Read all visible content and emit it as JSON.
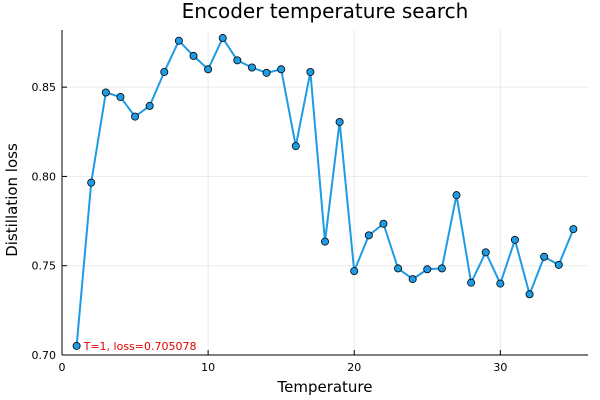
{
  "chart_data": {
    "type": "line",
    "title": "Encoder temperature search",
    "xlabel": "Temperature",
    "ylabel": "Distillation loss",
    "xlim": [
      0,
      36
    ],
    "ylim": [
      0.7,
      0.882
    ],
    "xticks": [
      0,
      10,
      20,
      30
    ],
    "xtick_labels": [
      "0",
      "10",
      "20",
      "30"
    ],
    "yticks": [
      0.7,
      0.75,
      0.8,
      0.85
    ],
    "ytick_labels": [
      "0.70",
      "0.75",
      "0.80",
      "0.85"
    ],
    "grid": true,
    "legend": "none",
    "series": [
      {
        "color": "#1f9be5",
        "marker_color": "#1f9be5",
        "x": [
          1,
          2,
          3,
          4,
          5,
          6,
          7,
          8,
          9,
          10,
          11,
          12,
          13,
          14,
          15,
          16,
          17,
          18,
          19,
          20,
          21,
          22,
          23,
          24,
          25,
          26,
          27,
          28,
          29,
          30,
          31,
          32,
          33,
          34,
          35
        ],
        "y": [
          0.705078,
          0.7965,
          0.847,
          0.8445,
          0.8335,
          0.8395,
          0.8585,
          0.876,
          0.8675,
          0.86,
          0.8775,
          0.865,
          0.861,
          0.858,
          0.86,
          0.817,
          0.8585,
          0.7635,
          0.8305,
          0.747,
          0.767,
          0.7735,
          0.7485,
          0.7425,
          0.748,
          0.7485,
          0.7895,
          0.7405,
          0.7575,
          0.74,
          0.7645,
          0.734,
          0.755,
          0.7505,
          0.7705
        ]
      }
    ],
    "annotations": [
      {
        "text": "T=1, loss=0.705078",
        "x": 1,
        "y": 0.705078,
        "color": "#e00000"
      }
    ]
  }
}
